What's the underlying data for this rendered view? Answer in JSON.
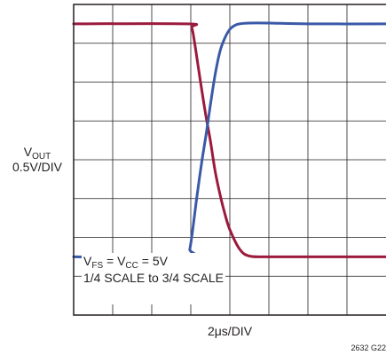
{
  "chart_data": {
    "type": "line",
    "ylabel": {
      "symbol": "V",
      "sub": "OUT",
      "scale": "0.5V/DIV"
    },
    "xlabel": "2μs/DIV",
    "figure_id": "2632 G22",
    "annotation": {
      "line1": {
        "v1": "V",
        "s1": "FS",
        "eq1": " = V",
        "s2": "CC",
        "rest": " = 5V"
      },
      "line2": "1/4 SCALE to 3/4 SCALE"
    },
    "xlim": [
      0,
      16
    ],
    "ylim": [
      0,
      4
    ],
    "grid": true,
    "series": [
      {
        "color": "#9b1b3c",
        "x": [
          0,
          5.8,
          6.05,
          6.2,
          6.35,
          6.5,
          6.75,
          7.0,
          7.25,
          7.5,
          7.75,
          8.0,
          8.5,
          9.0,
          10.0,
          12.0,
          16.0
        ],
        "y": [
          3.75,
          3.75,
          3.7,
          3.5,
          3.25,
          3.0,
          2.6,
          2.25,
          1.85,
          1.55,
          1.3,
          1.1,
          0.85,
          0.76,
          0.75,
          0.75,
          0.75
        ]
      },
      {
        "color": "#3a5aa8",
        "x": [
          0,
          5.8,
          5.95,
          6.1,
          6.3,
          6.55,
          6.8,
          7.0,
          7.25,
          7.5,
          7.75,
          8.0,
          8.25,
          8.5,
          9.0,
          10.0,
          12.0,
          16.0
        ],
        "y": [
          0.75,
          0.75,
          0.85,
          1.1,
          1.5,
          1.95,
          2.35,
          2.7,
          3.1,
          3.4,
          3.57,
          3.68,
          3.73,
          3.75,
          3.76,
          3.76,
          3.75,
          3.75
        ]
      }
    ]
  }
}
